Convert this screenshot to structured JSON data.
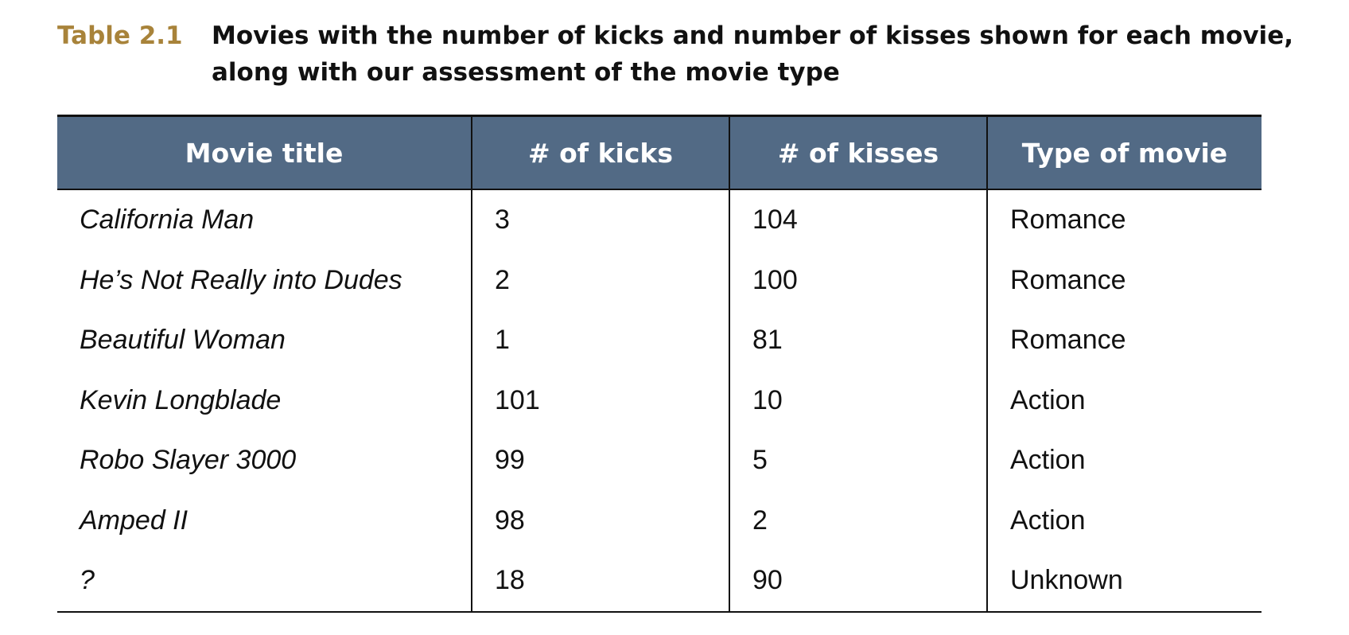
{
  "caption": {
    "label": "Table 2.1",
    "line1": "Movies with the number of kicks and number of kisses shown for each movie,",
    "line2": "along with our assessment of the movie type"
  },
  "table": {
    "headers": [
      "Movie title",
      "# of kicks",
      "# of kisses",
      "Type of movie"
    ],
    "rows": [
      [
        "California Man",
        "3",
        "104",
        "Romance"
      ],
      [
        "He’s Not Really into Dudes",
        "2",
        "100",
        "Romance"
      ],
      [
        "Beautiful Woman",
        "1",
        "81",
        "Romance"
      ],
      [
        "Kevin Longblade",
        "101",
        "10",
        "Action"
      ],
      [
        "Robo Slayer 3000",
        "99",
        "5",
        "Action"
      ],
      [
        "Amped II",
        "98",
        "2",
        "Action"
      ],
      [
        "?",
        "18",
        "90",
        "Unknown"
      ]
    ]
  },
  "colors": {
    "caption_label": "#a8833a",
    "header_background": "#526a85",
    "header_text": "#ffffff"
  }
}
